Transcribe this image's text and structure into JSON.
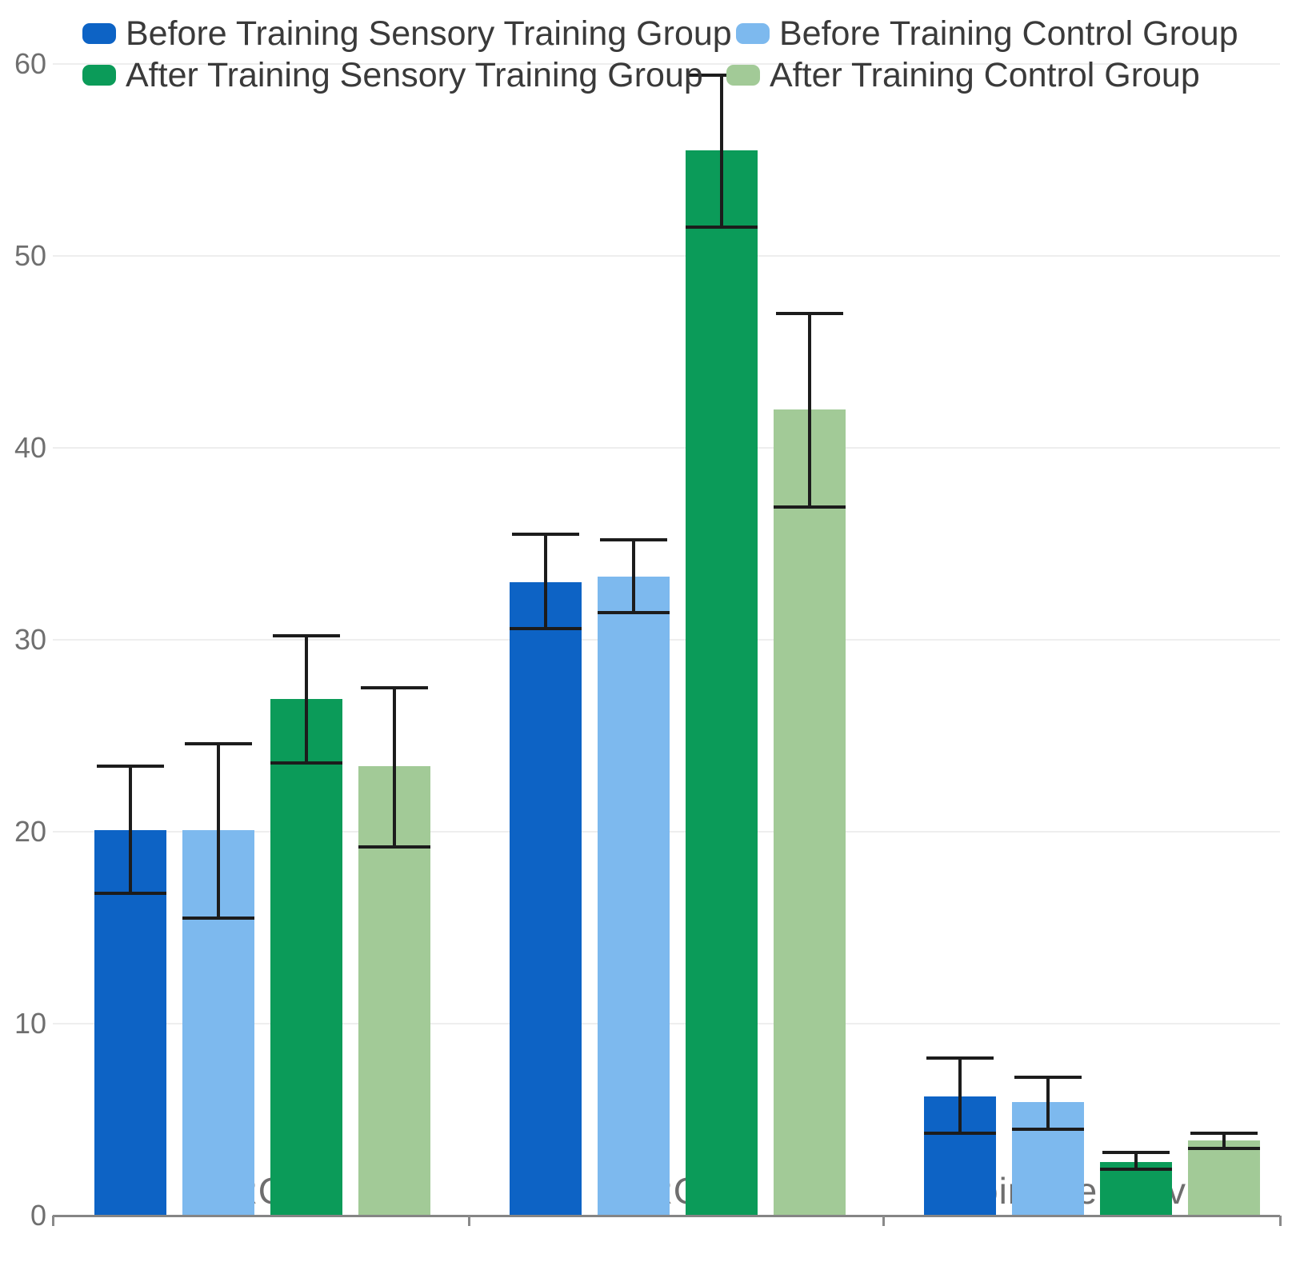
{
  "chart_data": {
    "type": "bar",
    "title": "",
    "categories": [
      "AROM",
      "PROM",
      "Joint Sensitivity"
    ],
    "series": [
      {
        "name": "Before Training Sensory Training Group",
        "color": "#0d63c5",
        "values": [
          20.1,
          33.0,
          6.2
        ],
        "error_low": [
          16.8,
          30.6,
          4.3
        ],
        "error_high": [
          23.4,
          35.5,
          8.2
        ]
      },
      {
        "name": "Before Training Control Group",
        "color": "#7db9ee",
        "values": [
          20.1,
          33.3,
          5.9
        ],
        "error_low": [
          15.5,
          31.4,
          4.5
        ],
        "error_high": [
          24.6,
          35.2,
          7.2
        ]
      },
      {
        "name": "After Training Sensory Training Group",
        "color": "#0b9b59",
        "values": [
          26.9,
          55.5,
          2.8
        ],
        "error_low": [
          23.6,
          51.5,
          2.4
        ],
        "error_high": [
          30.2,
          59.4,
          3.3
        ]
      },
      {
        "name": "After Training Control Group",
        "color": "#a2ca97",
        "values": [
          23.4,
          42.0,
          3.9
        ],
        "error_low": [
          19.2,
          36.9,
          3.5
        ],
        "error_high": [
          27.5,
          47.0,
          4.3
        ]
      }
    ],
    "yticks": [
      0,
      10,
      20,
      30,
      40,
      50,
      60
    ],
    "ylim": [
      0,
      60
    ],
    "grid": true,
    "error_bars": true,
    "legend_position": "top"
  },
  "style_colors": {
    "gridline": "#eeeeee",
    "baseline": "#858585",
    "error_bar": "#1c1c1c",
    "axis_text": "#6f6f6f",
    "legend_text": "#3a3a3a",
    "background": "#ffffff"
  }
}
